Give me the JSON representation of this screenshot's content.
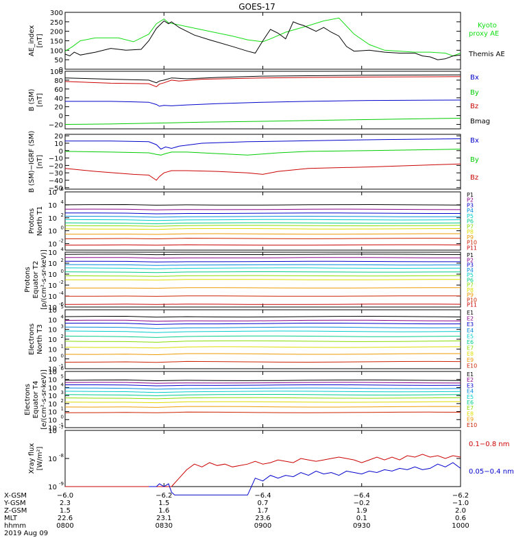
{
  "title": "GOES-17",
  "colors": {
    "black": "#000000",
    "blue": "#0000cc",
    "green": "#00cc00",
    "red": "#cc0000",
    "proxy_green": "#11dd11",
    "ladder": [
      "#000000",
      "#880088",
      "#0000cc",
      "#0088dd",
      "#00cccc",
      "#00cc88",
      "#88dd00",
      "#dddd00",
      "#ee9900",
      "#cc2200",
      "#cc0000"
    ]
  },
  "chart_data": [
    {
      "type": "line",
      "id": "ae",
      "ylabel": [
        "AE_index",
        "[nT]"
      ],
      "ylim": [
        0,
        300
      ],
      "yticks": [
        "300",
        "250",
        "200",
        "150",
        "100",
        "50",
        "0"
      ],
      "yvals": [
        300,
        250,
        200,
        150,
        100,
        50,
        0
      ],
      "series": [
        {
          "name": "Kyoto proxy AE",
          "label_lines": [
            "Kyoto",
            "proxy AE"
          ],
          "color": "#11dd11",
          "x": [
            0,
            5,
            10,
            20,
            35,
            45,
            55,
            60,
            65,
            68,
            80,
            95,
            110,
            120,
            130,
            135,
            145,
            160,
            170,
            180,
            190,
            200,
            210,
            230,
            240,
            250,
            255,
            260
          ],
          "y": [
            95,
            120,
            150,
            165,
            165,
            145,
            185,
            240,
            265,
            245,
            225,
            200,
            175,
            155,
            145,
            160,
            195,
            230,
            255,
            270,
            185,
            130,
            100,
            90,
            90,
            85,
            70,
            85
          ]
        },
        {
          "name": "Themis AE",
          "label_lines": [
            "Themis AE"
          ],
          "color": "#000000",
          "x": [
            0,
            3,
            6,
            10,
            20,
            30,
            40,
            50,
            55,
            60,
            65,
            68,
            70,
            75,
            85,
            95,
            110,
            120,
            125,
            130,
            135,
            140,
            145,
            150,
            153,
            157,
            165,
            170,
            175,
            180,
            185,
            190,
            200,
            210,
            220,
            230,
            235,
            240,
            245,
            250,
            255,
            260
          ],
          "y": [
            80,
            70,
            90,
            75,
            90,
            110,
            100,
            105,
            150,
            215,
            255,
            240,
            250,
            220,
            180,
            155,
            120,
            95,
            85,
            150,
            210,
            190,
            160,
            250,
            240,
            230,
            200,
            220,
            195,
            175,
            120,
            95,
            100,
            90,
            85,
            85,
            70,
            65,
            50,
            55,
            70,
            75
          ]
        }
      ]
    },
    {
      "type": "line",
      "id": "b_sm",
      "ylabel": [
        "B (SM)",
        "[nT]"
      ],
      "ylim": [
        -30,
        100
      ],
      "yticks": [
        "100",
        "80",
        "60",
        "40",
        "20",
        "0",
        "−20"
      ],
      "yvals": [
        100,
        80,
        60,
        40,
        20,
        0,
        -20
      ],
      "series": [
        {
          "name": "Bx",
          "color": "#0000cc",
          "x": [
            0,
            30,
            45,
            55,
            60,
            62,
            65,
            70,
            80,
            100,
            130,
            160,
            200,
            260
          ],
          "y": [
            32,
            32,
            31,
            30,
            25,
            21,
            23,
            22,
            24,
            27,
            30,
            32,
            34,
            35
          ]
        },
        {
          "name": "By",
          "color": "#00cc00",
          "x": [
            0,
            30,
            60,
            90,
            130,
            180,
            220,
            260
          ],
          "y": [
            -20,
            -19,
            -17,
            -15,
            -13,
            -10,
            -8,
            -6
          ]
        },
        {
          "name": "Bz",
          "color": "#cc0000",
          "x": [
            0,
            30,
            55,
            60,
            62,
            65,
            70,
            75,
            90,
            130,
            160,
            200,
            260
          ],
          "y": [
            77,
            73,
            72,
            65,
            71,
            74,
            80,
            78,
            82,
            85,
            86,
            87,
            88
          ]
        },
        {
          "name": "Bmag",
          "color": "#000000",
          "x": [
            0,
            30,
            55,
            60,
            62,
            65,
            70,
            80,
            100,
            130,
            160,
            200,
            260
          ],
          "y": [
            85,
            82,
            80,
            74,
            78,
            80,
            85,
            83,
            86,
            89,
            90,
            91,
            92
          ]
        }
      ]
    },
    {
      "type": "line",
      "id": "b_igrf",
      "ylabel": [
        "B (SM)−IGRF (SM)",
        "[nT]"
      ],
      "ylim": [
        -52,
        22
      ],
      "yticks": [
        "20",
        "10",
        "0",
        "−10",
        "−20",
        "−30",
        "−40",
        "−50"
      ],
      "yvals": [
        20,
        10,
        0,
        -10,
        -20,
        -30,
        -40,
        -50
      ],
      "series": [
        {
          "name": "Bx",
          "color": "#0000cc",
          "x": [
            0,
            30,
            55,
            60,
            63,
            66,
            70,
            75,
            90,
            120,
            150,
            180,
            210,
            260
          ],
          "y": [
            13,
            13,
            12,
            8,
            2,
            5,
            3,
            6,
            10,
            12,
            13,
            14,
            15,
            16
          ]
        },
        {
          "name": "By",
          "color": "#00cc00",
          "x": [
            0,
            30,
            55,
            60,
            63,
            66,
            70,
            80,
            100,
            120,
            140,
            160,
            200,
            260
          ],
          "y": [
            -1,
            -2,
            -3,
            -5,
            -6,
            -4,
            -2,
            -2,
            -4,
            -6,
            -3,
            -1,
            0,
            2
          ]
        },
        {
          "name": "Bz",
          "color": "#cc0000",
          "x": [
            0,
            20,
            45,
            55,
            60,
            62,
            65,
            70,
            80,
            100,
            120,
            130,
            140,
            160,
            200,
            260
          ],
          "y": [
            -24,
            -28,
            -32,
            -33,
            -40,
            -35,
            -30,
            -27,
            -27,
            -28,
            -30,
            -32,
            -28,
            -24,
            -22,
            -18
          ]
        }
      ]
    },
    {
      "type": "line",
      "id": "protons_t1",
      "ylabel": [
        "Protons",
        "North T1"
      ],
      "log": true,
      "ylim_exp": [
        -3,
        6
      ],
      "yticks": [
        {
          "b": "10",
          "e": "6",
          "v": 6
        },
        {
          "b": "10",
          "e": "4",
          "v": 4
        },
        {
          "b": "10",
          "e": "2",
          "v": 2
        },
        {
          "b": "10",
          "e": "0",
          "v": 0
        },
        {
          "b": "10",
          "e": "-2",
          "v": -2
        }
      ],
      "labels": [
        "P1",
        "P2",
        "P3",
        "P4",
        "P5",
        "P6",
        "P7",
        "P8",
        "P9",
        "P10",
        "P11"
      ],
      "levels": [
        4.0,
        3.3,
        2.7,
        2.2,
        1.7,
        1.2,
        0.8,
        0.3,
        -0.5,
        -1.2,
        -2.2
      ]
    },
    {
      "type": "line",
      "id": "protons_t2",
      "ylabel": [
        "Protons",
        "Equator T2",
        "[p/(cm²-s-sr-keV)]"
      ],
      "log": true,
      "ylim_exp": [
        -6,
        4
      ],
      "yticks": [
        {
          "b": "10",
          "e": "4",
          "v": 4
        },
        {
          "b": "10",
          "e": "2",
          "v": 2
        },
        {
          "b": "10",
          "e": "0",
          "v": 0
        },
        {
          "b": "10",
          "e": "-2",
          "v": -2
        },
        {
          "b": "10",
          "e": "-4",
          "v": -4
        },
        {
          "b": "10",
          "e": "-6",
          "v": -6
        }
      ],
      "labels": [
        "P1",
        "P2",
        "P3",
        "P4",
        "P5",
        "P6",
        "P7",
        "P8",
        "P9",
        "P10",
        "P11"
      ],
      "levels": [
        3.6,
        3.0,
        2.3,
        1.7,
        1.1,
        0.4,
        -0.3,
        -1.0,
        -2.5,
        -4.0,
        -5.5
      ]
    },
    {
      "type": "line",
      "id": "electrons_t3",
      "ylabel": [
        "Electrons",
        "North T3"
      ],
      "log": true,
      "ylim_exp": [
        -1,
        5
      ],
      "yticks": [
        {
          "b": "10",
          "e": "5",
          "v": 5
        },
        {
          "b": "10",
          "e": "4",
          "v": 4
        },
        {
          "b": "10",
          "e": "3",
          "v": 3
        },
        {
          "b": "10",
          "e": "2",
          "v": 2
        },
        {
          "b": "10",
          "e": "1",
          "v": 1
        },
        {
          "b": "10",
          "e": "0",
          "v": 0
        },
        {
          "b": "10",
          "e": "-1",
          "v": -1
        }
      ],
      "labels": [
        "E1",
        "E2",
        "E3",
        "E4",
        "E5",
        "E6",
        "E7",
        "E8",
        "E9",
        "E10"
      ],
      "levels": [
        4.3,
        3.9,
        3.6,
        3.2,
        2.8,
        2.3,
        1.8,
        1.2,
        0.5,
        -0.3
      ]
    },
    {
      "type": "line",
      "id": "electrons_t4",
      "ylabel": [
        "Electrons",
        "Equator T4",
        "[e/(cm²-s-sr-keV)]"
      ],
      "log": true,
      "ylim_exp": [
        -1,
        6
      ],
      "yticks": [
        {
          "b": "10",
          "e": "6",
          "v": 6
        },
        {
          "b": "10",
          "e": "5",
          "v": 5
        },
        {
          "b": "10",
          "e": "4",
          "v": 4
        },
        {
          "b": "10",
          "e": "3",
          "v": 3
        },
        {
          "b": "10",
          "e": "2",
          "v": 2
        },
        {
          "b": "10",
          "e": "1",
          "v": 1
        },
        {
          "b": "10",
          "e": "0",
          "v": 0
        },
        {
          "b": "10",
          "e": "-1",
          "v": -1
        }
      ],
      "labels": [
        "E1",
        "E2",
        "E3",
        "E4",
        "E5",
        "E6",
        "E7",
        "E8",
        "E9",
        "E10"
      ],
      "levels": [
        4.9,
        4.6,
        4.3,
        3.9,
        3.5,
        3.1,
        2.7,
        2.2,
        1.6,
        0.9
      ]
    },
    {
      "type": "line",
      "id": "xray",
      "ylabel": [
        "Xray flux",
        "[W/m²]"
      ],
      "log": true,
      "ylim_exp": [
        -9,
        -7
      ],
      "yticks": [
        {
          "b": "10",
          "e": "-7",
          "v": -7
        },
        {
          "b": "10",
          "e": "-8",
          "v": -8
        },
        {
          "b": "10",
          "e": "-9",
          "v": -9
        }
      ],
      "series": [
        {
          "name": "0.1−0.8 nm",
          "color": "#cc0000",
          "x": [
            0,
            70,
            75,
            80,
            85,
            90,
            95,
            100,
            105,
            110,
            115,
            120,
            125,
            130,
            135,
            140,
            145,
            150,
            155,
            160,
            165,
            170,
            175,
            180,
            185,
            190,
            195,
            200,
            205,
            210,
            215,
            220,
            225,
            230,
            235,
            240,
            245,
            250,
            255,
            260
          ],
          "y": [
            -9,
            -9,
            -8.7,
            -8.4,
            -8.2,
            -8.3,
            -8.15,
            -8.25,
            -8.2,
            -8.3,
            -8.25,
            -8.2,
            -8.1,
            -8.2,
            -8.15,
            -8.05,
            -8.1,
            -8.15,
            -8.0,
            -8.05,
            -8.1,
            -8.05,
            -8.0,
            -7.95,
            -8.0,
            -8.05,
            -8.15,
            -8.05,
            -7.95,
            -8.05,
            -7.95,
            -8.05,
            -7.9,
            -7.95,
            -7.85,
            -7.95,
            -7.9,
            -8.0,
            -7.9,
            -7.95
          ]
        },
        {
          "name": "0.05−0.4 nm",
          "color": "#0000cc",
          "x": [
            55,
            60,
            62,
            65,
            68,
            70,
            72,
            120,
            125,
            130,
            135,
            140,
            145,
            150,
            155,
            160,
            165,
            170,
            175,
            180,
            185,
            190,
            195,
            200,
            205,
            210,
            215,
            220,
            225,
            230,
            235,
            240,
            245,
            250,
            255,
            260
          ],
          "y": [
            -9,
            -9.0,
            -8.9,
            -9.0,
            -8.9,
            -9.2,
            -9.3,
            -9.3,
            -8.7,
            -8.8,
            -8.6,
            -8.7,
            -8.6,
            -8.65,
            -8.5,
            -8.6,
            -8.45,
            -8.55,
            -8.5,
            -8.6,
            -8.45,
            -8.5,
            -8.55,
            -8.45,
            -8.5,
            -8.4,
            -8.45,
            -8.35,
            -8.4,
            -8.3,
            -8.4,
            -8.35,
            -8.2,
            -8.3,
            -8.15,
            -8.35
          ]
        }
      ]
    }
  ],
  "footer": {
    "row_labels": [
      "X-GSM",
      "Y-GSM",
      "Z-GSM",
      "MLT",
      "hhmm",
      "2019 Aug 09"
    ],
    "columns": [
      [
        "−6.0",
        "2.3",
        "1.5",
        "22.6",
        "0800"
      ],
      [
        "−6.2",
        "1.5",
        "1.6",
        "23.1",
        "0830"
      ],
      [
        "−6.4",
        "0.7",
        "1.7",
        "23.6",
        "0900"
      ],
      [
        "−6.4",
        "−0.2",
        "1.9",
        "0.1",
        "0930"
      ],
      [
        "−6.2",
        "−1.0",
        "2.0",
        "0.6",
        "1000"
      ]
    ]
  }
}
